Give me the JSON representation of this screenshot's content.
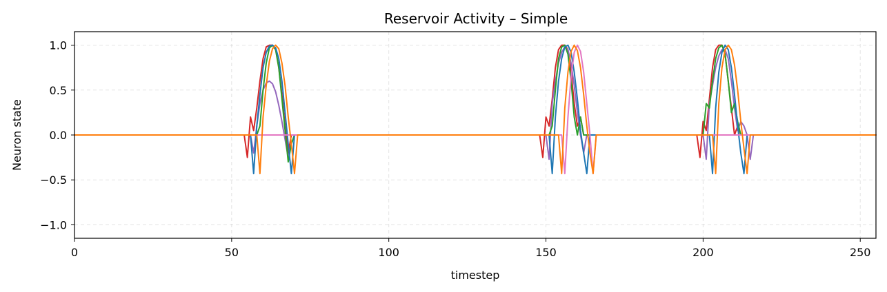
{
  "chart_data": {
    "type": "line",
    "title": "Reservoir Activity – Simple",
    "xlabel": "timestep",
    "ylabel": "Neuron state",
    "xlim": [
      0,
      255
    ],
    "ylim": [
      -1.15,
      1.15
    ],
    "x_ticks": [
      0,
      50,
      100,
      150,
      200,
      250
    ],
    "y_ticks": [
      -1.0,
      -0.5,
      0.0,
      0.5,
      1.0
    ],
    "x_tick_labels": [
      "0",
      "50",
      "100",
      "150",
      "200",
      "250"
    ],
    "y_tick_labels": [
      "−1.0",
      "−0.5",
      "0.0",
      "0.5",
      "1.0"
    ],
    "grid": true,
    "legend": "none",
    "series": [
      {
        "color": "#d62728",
        "points": [
          [
            0,
            0
          ],
          [
            54,
            0
          ],
          [
            55,
            -0.25
          ],
          [
            56,
            0.2
          ],
          [
            57,
            0.05
          ],
          [
            58,
            0.3
          ],
          [
            59,
            0.6
          ],
          [
            60,
            0.85
          ],
          [
            61,
            0.98
          ],
          [
            62,
            1.0
          ],
          [
            63,
            1.0
          ],
          [
            64,
            0.95
          ],
          [
            65,
            0.75
          ],
          [
            66,
            0.45
          ],
          [
            67,
            0.1
          ],
          [
            68,
            -0.2
          ],
          [
            69,
            0.0
          ],
          [
            70,
            0
          ],
          [
            148,
            0
          ],
          [
            149,
            -0.25
          ],
          [
            150,
            0.2
          ],
          [
            151,
            0.1
          ],
          [
            152,
            0.4
          ],
          [
            153,
            0.75
          ],
          [
            154,
            0.95
          ],
          [
            155,
            1.0
          ],
          [
            156,
            1.0
          ],
          [
            157,
            0.95
          ],
          [
            158,
            0.7
          ],
          [
            159,
            0.35
          ],
          [
            160,
            0.1
          ],
          [
            161,
            0.2
          ],
          [
            162,
            0.0
          ],
          [
            163,
            0
          ],
          [
            198,
            0
          ],
          [
            199,
            -0.25
          ],
          [
            200,
            0.15
          ],
          [
            201,
            0.05
          ],
          [
            202,
            0.4
          ],
          [
            203,
            0.75
          ],
          [
            204,
            0.95
          ],
          [
            205,
            1.0
          ],
          [
            206,
            1.0
          ],
          [
            207,
            0.9
          ],
          [
            208,
            0.6
          ],
          [
            209,
            0.3
          ],
          [
            210,
            0.0
          ],
          [
            211,
            0.1
          ],
          [
            212,
            0.0
          ],
          [
            255,
            0
          ]
        ]
      },
      {
        "color": "#9467bd",
        "points": [
          [
            0,
            0
          ],
          [
            56,
            0
          ],
          [
            57,
            -0.2
          ],
          [
            58,
            0.1
          ],
          [
            59,
            0.35
          ],
          [
            60,
            0.5
          ],
          [
            61,
            0.58
          ],
          [
            62,
            0.6
          ],
          [
            63,
            0.57
          ],
          [
            64,
            0.48
          ],
          [
            65,
            0.33
          ],
          [
            66,
            0.15
          ],
          [
            67,
            -0.05
          ],
          [
            68,
            -0.25
          ],
          [
            69,
            -0.1
          ],
          [
            70,
            0
          ],
          [
            150,
            0
          ],
          [
            151,
            -0.27
          ],
          [
            152,
            0.35
          ],
          [
            153,
            0.6
          ],
          [
            154,
            0.8
          ],
          [
            155,
            0.92
          ],
          [
            156,
            0.98
          ],
          [
            157,
            0.95
          ],
          [
            158,
            0.8
          ],
          [
            159,
            0.55
          ],
          [
            160,
            0.25
          ],
          [
            161,
            0.0
          ],
          [
            162,
            -0.2
          ],
          [
            163,
            0
          ],
          [
            200,
            0
          ],
          [
            201,
            -0.27
          ],
          [
            202,
            0.35
          ],
          [
            203,
            0.55
          ],
          [
            204,
            0.75
          ],
          [
            205,
            0.88
          ],
          [
            206,
            0.95
          ],
          [
            207,
            0.95
          ],
          [
            208,
            0.85
          ],
          [
            209,
            0.6
          ],
          [
            210,
            0.3
          ],
          [
            211,
            0.05
          ],
          [
            212,
            0.15
          ],
          [
            213,
            0.1
          ],
          [
            214,
            0.0
          ],
          [
            215,
            -0.27
          ],
          [
            216,
            0
          ],
          [
            255,
            0
          ]
        ]
      },
      {
        "color": "#2ca02c",
        "points": [
          [
            0,
            0
          ],
          [
            58,
            0
          ],
          [
            59,
            0.1
          ],
          [
            60,
            0.5
          ],
          [
            61,
            0.8
          ],
          [
            62,
            0.97
          ],
          [
            63,
            1.0
          ],
          [
            64,
            0.95
          ],
          [
            65,
            0.75
          ],
          [
            66,
            0.4
          ],
          [
            67,
            0.05
          ],
          [
            68,
            -0.3
          ],
          [
            69,
            -0.1
          ],
          [
            70,
            0
          ],
          [
            151,
            0
          ],
          [
            152,
            0.1
          ],
          [
            153,
            0.5
          ],
          [
            154,
            0.85
          ],
          [
            155,
            0.98
          ],
          [
            156,
            1.0
          ],
          [
            157,
            0.9
          ],
          [
            158,
            0.6
          ],
          [
            159,
            0.2
          ],
          [
            160,
            0.0
          ],
          [
            161,
            0.2
          ],
          [
            162,
            0.0
          ],
          [
            163,
            0
          ],
          [
            200,
            0
          ],
          [
            201,
            0.35
          ],
          [
            202,
            0.3
          ],
          [
            203,
            0.6
          ],
          [
            204,
            0.85
          ],
          [
            205,
            0.97
          ],
          [
            206,
            1.0
          ],
          [
            207,
            0.9
          ],
          [
            208,
            0.6
          ],
          [
            209,
            0.25
          ],
          [
            210,
            0.35
          ],
          [
            211,
            0.15
          ],
          [
            212,
            0.0
          ],
          [
            255,
            0
          ]
        ]
      },
      {
        "color": "#1f77b4",
        "points": [
          [
            0,
            0
          ],
          [
            56,
            0
          ],
          [
            57,
            -0.43
          ],
          [
            58,
            0.1
          ],
          [
            59,
            0.45
          ],
          [
            60,
            0.75
          ],
          [
            61,
            0.92
          ],
          [
            62,
            0.99
          ],
          [
            63,
            1.0
          ],
          [
            64,
            0.97
          ],
          [
            65,
            0.85
          ],
          [
            66,
            0.6
          ],
          [
            67,
            0.25
          ],
          [
            68,
            -0.1
          ],
          [
            69,
            -0.43
          ],
          [
            70,
            0
          ],
          [
            151,
            0
          ],
          [
            152,
            -0.43
          ],
          [
            153,
            0.2
          ],
          [
            154,
            0.6
          ],
          [
            155,
            0.85
          ],
          [
            156,
            0.98
          ],
          [
            157,
            1.0
          ],
          [
            158,
            0.92
          ],
          [
            159,
            0.7
          ],
          [
            160,
            0.4
          ],
          [
            161,
            0.05
          ],
          [
            162,
            -0.2
          ],
          [
            163,
            -0.43
          ],
          [
            164,
            0
          ],
          [
            202,
            0
          ],
          [
            203,
            -0.43
          ],
          [
            204,
            0.3
          ],
          [
            205,
            0.7
          ],
          [
            206,
            0.92
          ],
          [
            207,
            1.0
          ],
          [
            208,
            0.95
          ],
          [
            209,
            0.75
          ],
          [
            210,
            0.45
          ],
          [
            211,
            0.1
          ],
          [
            212,
            -0.2
          ],
          [
            213,
            -0.43
          ],
          [
            214,
            0
          ],
          [
            255,
            0
          ]
        ]
      },
      {
        "color": "#e377c2",
        "points": [
          [
            0,
            0
          ],
          [
            155,
            0
          ],
          [
            156,
            -0.43
          ],
          [
            157,
            0.2
          ],
          [
            158,
            0.65
          ],
          [
            159,
            0.92
          ],
          [
            160,
            1.0
          ],
          [
            161,
            0.93
          ],
          [
            162,
            0.7
          ],
          [
            163,
            0.35
          ],
          [
            164,
            0.0
          ],
          [
            165,
            -0.43
          ],
          [
            166,
            0
          ],
          [
            255,
            0
          ]
        ]
      },
      {
        "color": "#ff7f0e",
        "points": [
          [
            0,
            0
          ],
          [
            58,
            0
          ],
          [
            59,
            -0.43
          ],
          [
            60,
            0.2
          ],
          [
            61,
            0.55
          ],
          [
            62,
            0.82
          ],
          [
            63,
            0.96
          ],
          [
            64,
            1.0
          ],
          [
            65,
            0.96
          ],
          [
            66,
            0.8
          ],
          [
            67,
            0.55
          ],
          [
            68,
            0.2
          ],
          [
            69,
            -0.1
          ],
          [
            70,
            -0.43
          ],
          [
            71,
            0.0
          ],
          [
            72,
            0
          ],
          [
            154,
            0
          ],
          [
            155,
            -0.43
          ],
          [
            156,
            0.3
          ],
          [
            157,
            0.7
          ],
          [
            158,
            0.93
          ],
          [
            159,
            1.0
          ],
          [
            160,
            0.94
          ],
          [
            161,
            0.75
          ],
          [
            162,
            0.45
          ],
          [
            163,
            0.1
          ],
          [
            164,
            -0.2
          ],
          [
            165,
            -0.43
          ],
          [
            166,
            0
          ],
          [
            203,
            0
          ],
          [
            204,
            -0.43
          ],
          [
            205,
            0.35
          ],
          [
            206,
            0.75
          ],
          [
            207,
            0.95
          ],
          [
            208,
            1.0
          ],
          [
            209,
            0.95
          ],
          [
            210,
            0.78
          ],
          [
            211,
            0.5
          ],
          [
            212,
            0.15
          ],
          [
            213,
            -0.15
          ],
          [
            214,
            -0.43
          ],
          [
            215,
            0
          ],
          [
            255,
            0
          ]
        ]
      }
    ]
  }
}
